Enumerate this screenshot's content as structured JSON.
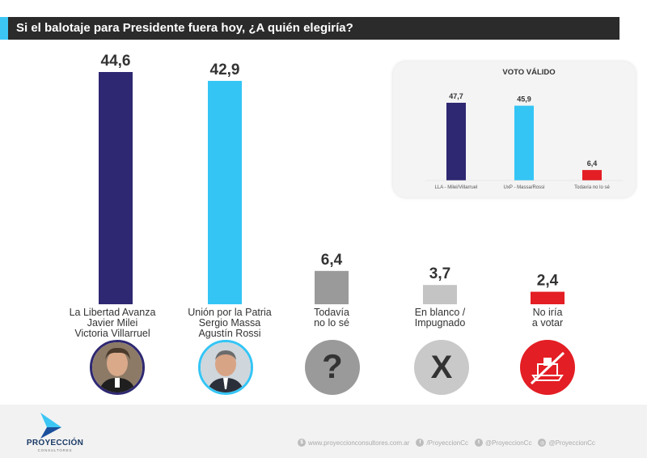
{
  "header": {
    "title": "Si el balotaje para Presidente fuera hoy, ¿A quién elegiría?"
  },
  "chart_data": [
    {
      "type": "bar",
      "title": "Si el balotaje para Presidente fuera hoy, ¿A quién elegiría?",
      "categories": [
        "La Libertad Avanza\nJavier Milei\nVictoria Villarruel",
        "Unión por la Patria\nSergio Massa\nAgustín Rossi",
        "Todavía\nno lo sé",
        "En blanco /\nImpugnado",
        "No iría\na votar"
      ],
      "values": [
        44.6,
        42.9,
        6.4,
        3.7,
        2.4
      ],
      "value_labels": [
        "44,6",
        "42,9",
        "6,4",
        "3,7",
        "2,4"
      ],
      "colors": [
        "#2e2872",
        "#34c5f5",
        "#9a9a9a",
        "#c4c4c4",
        "#e31e24"
      ],
      "ylim": [
        0,
        50
      ]
    },
    {
      "type": "bar",
      "title": "VOTO VÁLIDO",
      "categories": [
        "LLA - Milei/Villarruel",
        "UxP - Massa/Rossi",
        "Todavía no lo sé"
      ],
      "values": [
        47.7,
        45.9,
        6.4
      ],
      "value_labels": [
        "47,7",
        "45,9",
        "6,4"
      ],
      "colors": [
        "#2e2872",
        "#34c5f5",
        "#e31e24"
      ],
      "ylim": [
        0,
        50
      ]
    }
  ],
  "icons": {
    "candidate_1": "milei-portrait",
    "candidate_2": "massa-portrait",
    "undecided": "question-icon",
    "blank": "x-icon",
    "no_vote": "no-vote-icon"
  },
  "footer": {
    "brand": "PROYECCIÓN",
    "brand_sub": "CONSULTORES",
    "website": "www.proyeccionconsultores.com.ar",
    "facebook": "/ProyeccionCc",
    "twitter": "@ProyeccionCc",
    "instagram": "@ProyeccionCc"
  }
}
